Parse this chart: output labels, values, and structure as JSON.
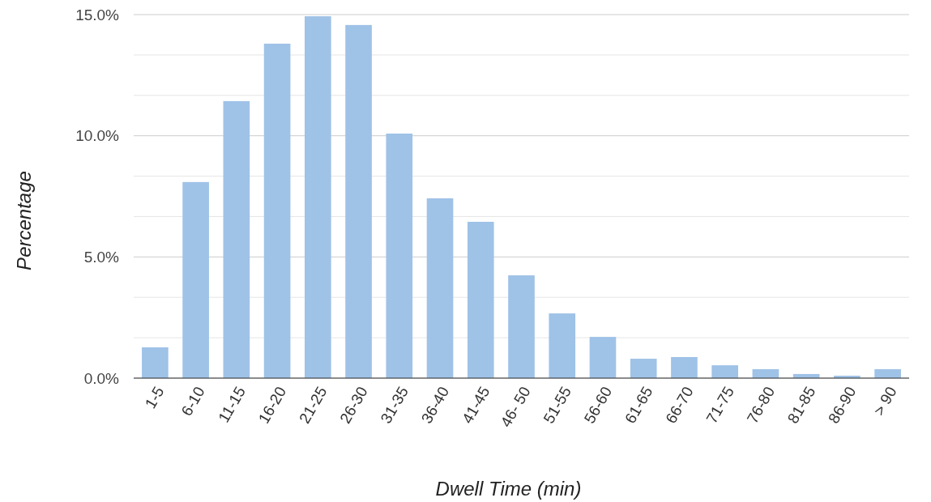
{
  "chart_data": {
    "type": "bar",
    "xlabel": "Dwell Time (min)",
    "ylabel": "Percentage",
    "categories": [
      "1-5",
      "6-10",
      "11-15",
      "16-20",
      "21-25",
      "26-30",
      "31-35",
      "36-40",
      "41-45",
      "46- 50",
      "51-55",
      "56-60",
      "61-65",
      "66-70",
      "71-75",
      "76-80",
      "81-85",
      "86-90",
      "> 90"
    ],
    "values": [
      1.27,
      8.09,
      11.43,
      13.8,
      14.93,
      14.57,
      10.09,
      7.42,
      6.45,
      4.24,
      2.67,
      1.7,
      0.8,
      0.87,
      0.53,
      0.37,
      0.17,
      0.1,
      0.37
    ],
    "color": "#9fc2e7",
    "ylim": [
      0,
      15
    ],
    "yticks": [
      {
        "value": 0,
        "label": "0.0%"
      },
      {
        "value": 1.667,
        "label": null
      },
      {
        "value": 3.333,
        "label": null
      },
      {
        "value": 5,
        "label": "5.0%"
      },
      {
        "value": 6.667,
        "label": null
      },
      {
        "value": 8.333,
        "label": null
      },
      {
        "value": 10,
        "label": "10.0%"
      },
      {
        "value": 11.667,
        "label": null
      },
      {
        "value": 13.333,
        "label": null
      },
      {
        "value": 15,
        "label": "15.0%"
      }
    ],
    "grid": "y"
  }
}
